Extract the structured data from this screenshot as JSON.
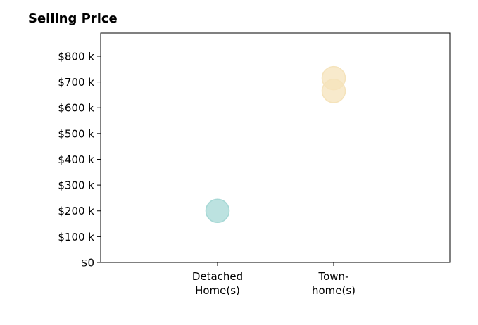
{
  "chart_data": {
    "type": "scatter",
    "title": "Selling Price",
    "xlabel": "",
    "ylabel": "",
    "categories": [
      [
        "Detached",
        "Home(s)"
      ],
      [
        "Town-",
        "home(s)"
      ]
    ],
    "yticks": [
      "$0",
      "$100 k",
      "$200 k",
      "$300 k",
      "$400 k",
      "$500 k",
      "$600 k",
      "$700 k",
      "$800 k"
    ],
    "ytick_values": [
      0,
      100,
      200,
      300,
      400,
      500,
      600,
      700,
      800
    ],
    "ylim": [
      0,
      890
    ],
    "grid": false,
    "points": [
      {
        "category": 0,
        "value": 200,
        "color": "#a6d8d5"
      },
      {
        "category": 1,
        "value": 715,
        "color": "#f5e3bb"
      },
      {
        "category": 1,
        "value": 665,
        "color": "#f5e3bb"
      }
    ]
  }
}
